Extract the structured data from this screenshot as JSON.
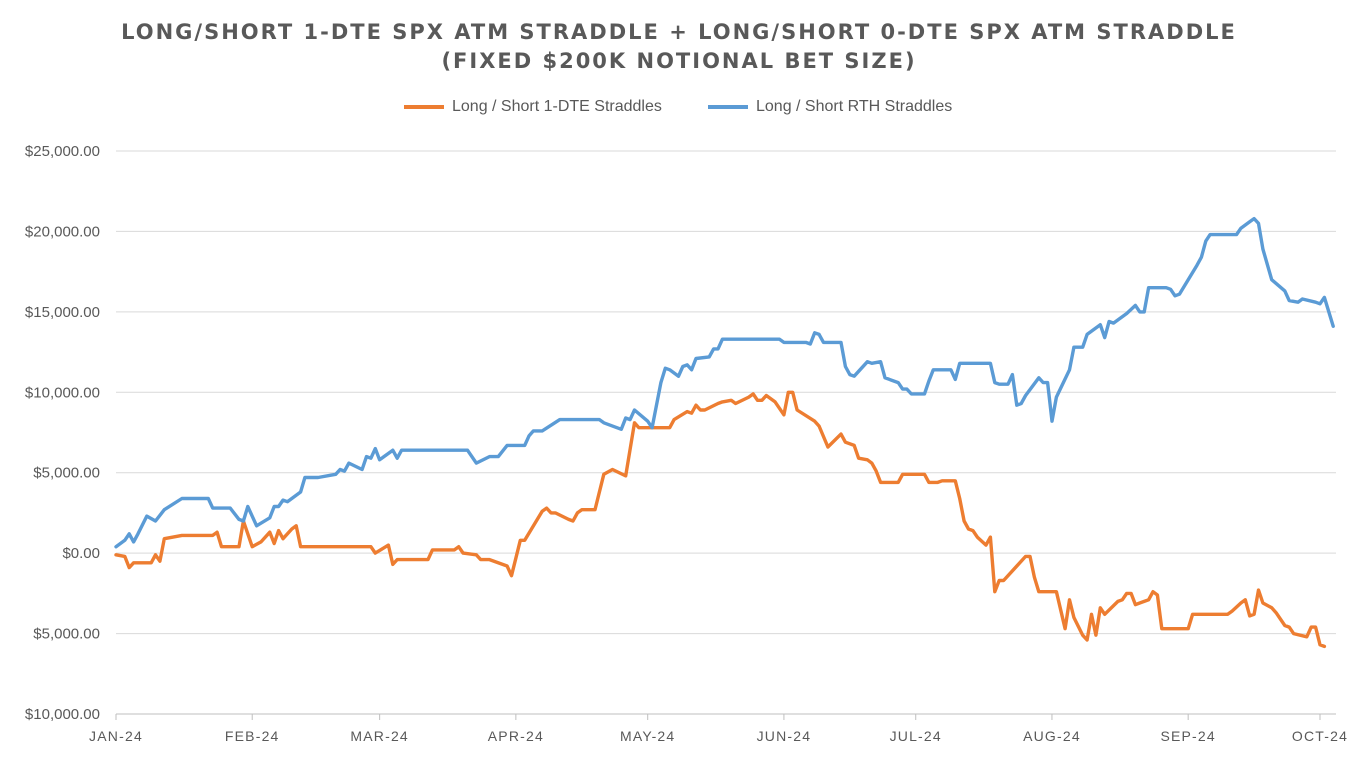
{
  "chart_data": {
    "type": "line",
    "title_line1": "LONG/SHORT 1-DTE SPX ATM STRADDLE + LONG/SHORT 0-DTE SPX ATM STRADDLE",
    "title_line2": "(FIXED $200K NOTIONAL BET SIZE)",
    "xlabel": "",
    "ylabel": "",
    "ylim": [
      -10000,
      25000
    ],
    "grid": true,
    "legend_position": "top-center",
    "y_ticks": [
      {
        "value": 25000,
        "label": "$25,000.00",
        "color": "#595959"
      },
      {
        "value": 20000,
        "label": "$20,000.00",
        "color": "#595959"
      },
      {
        "value": 15000,
        "label": "$15,000.00",
        "color": "#595959"
      },
      {
        "value": 10000,
        "label": "$10,000.00",
        "color": "#595959"
      },
      {
        "value": 5000,
        "label": "$5,000.00",
        "color": "#595959"
      },
      {
        "value": 0,
        "label": "$0.00",
        "color": "#595959"
      },
      {
        "value": -5000,
        "label": "$5,000.00",
        "color": "#ff0000"
      },
      {
        "value": -10000,
        "label": "$10,000.00",
        "color": "#ff0000"
      }
    ],
    "x_ticks": [
      {
        "day": 0,
        "label": "JAN-24"
      },
      {
        "day": 31,
        "label": "FEB-24"
      },
      {
        "day": 60,
        "label": "MAR-24"
      },
      {
        "day": 91,
        "label": "APR-24"
      },
      {
        "day": 121,
        "label": "MAY-24"
      },
      {
        "day": 152,
        "label": "JUN-24"
      },
      {
        "day": 182,
        "label": "JUL-24"
      },
      {
        "day": 213,
        "label": "AUG-24"
      },
      {
        "day": 244,
        "label": "SEP-24"
      },
      {
        "day": 274,
        "label": "OCT-24"
      }
    ],
    "x_range": [
      0,
      274
    ],
    "series": [
      {
        "name": "Long / Short 1-DTE Straddles",
        "color": "#ed7d31",
        "points": [
          [
            0,
            -100
          ],
          [
            2,
            -200
          ],
          [
            3,
            -900
          ],
          [
            4,
            -600
          ],
          [
            8,
            -600
          ],
          [
            9,
            -100
          ],
          [
            10,
            -500
          ],
          [
            11,
            900
          ],
          [
            15,
            1100
          ],
          [
            22,
            1100
          ],
          [
            23,
            1300
          ],
          [
            24,
            400
          ],
          [
            28,
            400
          ],
          [
            29,
            2000
          ],
          [
            31,
            400
          ],
          [
            33,
            700
          ],
          [
            35,
            1300
          ],
          [
            36,
            600
          ],
          [
            37,
            1400
          ],
          [
            38,
            900
          ],
          [
            40,
            1500
          ],
          [
            41,
            1700
          ],
          [
            42,
            400
          ],
          [
            58,
            400
          ],
          [
            59,
            0
          ],
          [
            62,
            500
          ],
          [
            63,
            -700
          ],
          [
            64,
            -400
          ],
          [
            71,
            -400
          ],
          [
            72,
            200
          ],
          [
            77,
            200
          ],
          [
            78,
            400
          ],
          [
            79,
            0
          ],
          [
            82,
            -100
          ],
          [
            83,
            -400
          ],
          [
            85,
            -400
          ],
          [
            89,
            -800
          ],
          [
            90,
            -1400
          ],
          [
            92,
            800
          ],
          [
            93,
            800
          ],
          [
            97,
            2600
          ],
          [
            98,
            2800
          ],
          [
            99,
            2500
          ],
          [
            100,
            2500
          ],
          [
            103,
            2100
          ],
          [
            104,
            2000
          ],
          [
            105,
            2500
          ],
          [
            106,
            2700
          ],
          [
            109,
            2700
          ],
          [
            111,
            4900
          ],
          [
            113,
            5200
          ],
          [
            116,
            4800
          ],
          [
            118,
            8100
          ],
          [
            119,
            7800
          ],
          [
            126,
            7800
          ],
          [
            127,
            8300
          ],
          [
            130,
            8800
          ],
          [
            131,
            8700
          ],
          [
            132,
            9200
          ],
          [
            133,
            8900
          ],
          [
            134,
            8900
          ],
          [
            137,
            9300
          ],
          [
            138,
            9400
          ],
          [
            140,
            9500
          ],
          [
            141,
            9300
          ],
          [
            144,
            9700
          ],
          [
            145,
            9900
          ],
          [
            146,
            9500
          ],
          [
            147,
            9500
          ],
          [
            148,
            9800
          ],
          [
            150,
            9400
          ],
          [
            152,
            8600
          ],
          [
            153,
            10000
          ],
          [
            154,
            10000
          ],
          [
            155,
            8900
          ],
          [
            159,
            8200
          ],
          [
            160,
            7900
          ],
          [
            162,
            6600
          ],
          [
            165,
            7400
          ],
          [
            166,
            6900
          ],
          [
            168,
            6700
          ],
          [
            169,
            5900
          ],
          [
            171,
            5800
          ],
          [
            172,
            5600
          ],
          [
            173,
            5100
          ],
          [
            174,
            4400
          ],
          [
            178,
            4400
          ],
          [
            179,
            4900
          ],
          [
            184,
            4900
          ],
          [
            185,
            4400
          ],
          [
            187,
            4400
          ],
          [
            188,
            4500
          ],
          [
            191,
            4500
          ],
          [
            192,
            3400
          ],
          [
            193,
            2000
          ],
          [
            194,
            1500
          ],
          [
            195,
            1400
          ],
          [
            196,
            1000
          ],
          [
            198,
            500
          ],
          [
            199,
            1000
          ],
          [
            200,
            -2400
          ],
          [
            201,
            -1700
          ],
          [
            202,
            -1700
          ],
          [
            207,
            -200
          ],
          [
            208,
            -200
          ],
          [
            209,
            -1500
          ],
          [
            210,
            -2400
          ],
          [
            214,
            -2400
          ],
          [
            216,
            -4700
          ],
          [
            217,
            -2900
          ],
          [
            218,
            -4000
          ],
          [
            220,
            -5100
          ],
          [
            221,
            -5400
          ],
          [
            222,
            -3800
          ],
          [
            223,
            -5100
          ],
          [
            224,
            -3400
          ],
          [
            225,
            -3800
          ],
          [
            228,
            -3000
          ],
          [
            229,
            -2900
          ],
          [
            230,
            -2500
          ],
          [
            231,
            -2500
          ],
          [
            232,
            -3200
          ],
          [
            234,
            -3000
          ],
          [
            235,
            -2900
          ],
          [
            236,
            -2400
          ],
          [
            237,
            -2600
          ],
          [
            238,
            -4700
          ],
          [
            244,
            -4700
          ],
          [
            245,
            -3800
          ],
          [
            253,
            -3800
          ],
          [
            254,
            -3600
          ],
          [
            256,
            -3100
          ],
          [
            257,
            -2900
          ],
          [
            258,
            -3900
          ],
          [
            259,
            -3800
          ],
          [
            260,
            -2300
          ],
          [
            261,
            -3100
          ],
          [
            263,
            -3400
          ],
          [
            264,
            -3700
          ],
          [
            266,
            -4500
          ],
          [
            267,
            -4600
          ],
          [
            268,
            -5000
          ],
          [
            271,
            -5200
          ],
          [
            272,
            -4600
          ],
          [
            273,
            -4600
          ],
          [
            274,
            -5700
          ],
          [
            275,
            -5800
          ]
        ]
      },
      {
        "name": "Long / Short RTH Straddles",
        "color": "#5b9bd5",
        "points": [
          [
            0,
            400
          ],
          [
            2,
            800
          ],
          [
            3,
            1200
          ],
          [
            4,
            700
          ],
          [
            5,
            1200
          ],
          [
            7,
            2300
          ],
          [
            9,
            2000
          ],
          [
            11,
            2700
          ],
          [
            15,
            3400
          ],
          [
            21,
            3400
          ],
          [
            22,
            2800
          ],
          [
            26,
            2800
          ],
          [
            28,
            2100
          ],
          [
            29,
            2000
          ],
          [
            30,
            2900
          ],
          [
            32,
            1700
          ],
          [
            35,
            2200
          ],
          [
            36,
            2900
          ],
          [
            37,
            2900
          ],
          [
            38,
            3300
          ],
          [
            39,
            3200
          ],
          [
            42,
            3800
          ],
          [
            43,
            4700
          ],
          [
            46,
            4700
          ],
          [
            50,
            4900
          ],
          [
            51,
            5200
          ],
          [
            52,
            5100
          ],
          [
            53,
            5600
          ],
          [
            56,
            5200
          ],
          [
            57,
            6000
          ],
          [
            58,
            5900
          ],
          [
            59,
            6500
          ],
          [
            60,
            5800
          ],
          [
            63,
            6400
          ],
          [
            64,
            5900
          ],
          [
            65,
            6400
          ],
          [
            80,
            6400
          ],
          [
            82,
            5600
          ],
          [
            85,
            6000
          ],
          [
            87,
            6000
          ],
          [
            89,
            6700
          ],
          [
            93,
            6700
          ],
          [
            94,
            7300
          ],
          [
            95,
            7600
          ],
          [
            97,
            7600
          ],
          [
            101,
            8300
          ],
          [
            110,
            8300
          ],
          [
            111,
            8100
          ],
          [
            115,
            7700
          ],
          [
            116,
            8400
          ],
          [
            117,
            8300
          ],
          [
            118,
            8900
          ],
          [
            121,
            8200
          ],
          [
            122,
            7800
          ],
          [
            124,
            10600
          ],
          [
            125,
            11500
          ],
          [
            126,
            11400
          ],
          [
            128,
            11000
          ],
          [
            129,
            11600
          ],
          [
            130,
            11700
          ],
          [
            131,
            11400
          ],
          [
            132,
            12100
          ],
          [
            135,
            12200
          ],
          [
            136,
            12700
          ],
          [
            137,
            12700
          ],
          [
            138,
            13300
          ],
          [
            151,
            13300
          ],
          [
            152,
            13100
          ],
          [
            157,
            13100
          ],
          [
            158,
            13000
          ],
          [
            159,
            13700
          ],
          [
            160,
            13600
          ],
          [
            161,
            13100
          ],
          [
            165,
            13100
          ],
          [
            166,
            11600
          ],
          [
            167,
            11100
          ],
          [
            168,
            11000
          ],
          [
            171,
            11900
          ],
          [
            172,
            11800
          ],
          [
            174,
            11900
          ],
          [
            175,
            10900
          ],
          [
            178,
            10600
          ],
          [
            179,
            10200
          ],
          [
            180,
            10200
          ],
          [
            181,
            9900
          ],
          [
            184,
            9900
          ],
          [
            185,
            10700
          ],
          [
            186,
            11400
          ],
          [
            190,
            11400
          ],
          [
            191,
            10800
          ],
          [
            192,
            11800
          ],
          [
            199,
            11800
          ],
          [
            200,
            10600
          ],
          [
            201,
            10500
          ],
          [
            203,
            10500
          ],
          [
            204,
            11100
          ],
          [
            205,
            9200
          ],
          [
            206,
            9300
          ],
          [
            207,
            9800
          ],
          [
            210,
            10900
          ],
          [
            211,
            10600
          ],
          [
            212,
            10600
          ],
          [
            213,
            8200
          ],
          [
            214,
            9700
          ],
          [
            217,
            11400
          ],
          [
            218,
            12800
          ],
          [
            220,
            12800
          ],
          [
            221,
            13600
          ],
          [
            224,
            14200
          ],
          [
            225,
            13400
          ],
          [
            226,
            14400
          ],
          [
            227,
            14300
          ],
          [
            230,
            14900
          ],
          [
            232,
            15400
          ],
          [
            233,
            15000
          ],
          [
            234,
            15000
          ],
          [
            235,
            16500
          ],
          [
            239,
            16500
          ],
          [
            240,
            16400
          ],
          [
            241,
            16000
          ],
          [
            242,
            16100
          ],
          [
            246,
            17900
          ],
          [
            247,
            18400
          ],
          [
            248,
            19400
          ],
          [
            249,
            19800
          ],
          [
            255,
            19800
          ],
          [
            256,
            20200
          ],
          [
            258,
            20600
          ],
          [
            259,
            20800
          ],
          [
            260,
            20500
          ],
          [
            261,
            18900
          ],
          [
            263,
            17000
          ],
          [
            266,
            16300
          ],
          [
            267,
            15700
          ],
          [
            269,
            15600
          ],
          [
            270,
            15800
          ],
          [
            273,
            15600
          ],
          [
            274,
            15500
          ],
          [
            275,
            15900
          ],
          [
            277,
            14100
          ]
        ]
      }
    ]
  }
}
